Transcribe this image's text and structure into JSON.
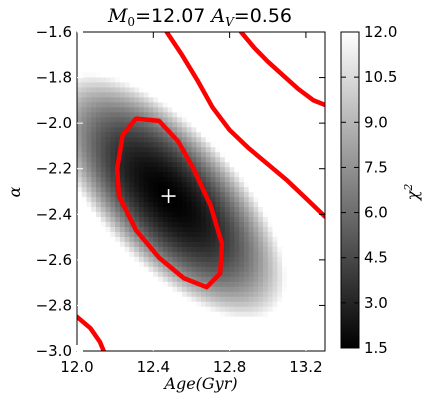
{
  "chart_data": {
    "type": "heatmap",
    "title": {
      "m_sym": "M",
      "m_sub": "0",
      "m_val": "=12.07",
      "a_sym": "A",
      "a_sub": "V",
      "a_val": "=0.56"
    },
    "xlabel": "Age(Gyr)",
    "ylabel": "α",
    "colorbar_label": "χ",
    "colorbar_label_sup": "2",
    "xlim": [
      12.0,
      13.3
    ],
    "ylim": [
      -3.0,
      -1.6
    ],
    "xticks": [
      "12.0",
      "12.4",
      "12.8",
      "13.2"
    ],
    "yticks": [
      "−3.0",
      "−2.8",
      "−2.6",
      "−2.4",
      "−2.2",
      "−2.0",
      "−1.8",
      "−1.6"
    ],
    "colorbar_ticks": [
      "1.5",
      "3.0",
      "4.5",
      "6.0",
      "7.5",
      "9.0",
      "10.5",
      "12.0"
    ],
    "colorbar_range": [
      1.5,
      12.0
    ],
    "colormap": "gray (black = low, white = high)",
    "best_fit": {
      "age": 12.48,
      "alpha": -2.32
    },
    "contour_color": "#ff0000",
    "contours": [
      {
        "name": "closed",
        "points": [
          [
            12.22,
            -2.32
          ],
          [
            12.21,
            -2.2
          ],
          [
            12.24,
            -2.05
          ],
          [
            12.31,
            -1.98
          ],
          [
            12.43,
            -1.99
          ],
          [
            12.53,
            -2.08
          ],
          [
            12.61,
            -2.2
          ],
          [
            12.7,
            -2.36
          ],
          [
            12.76,
            -2.53
          ],
          [
            12.75,
            -2.66
          ],
          [
            12.68,
            -2.72
          ],
          [
            12.56,
            -2.68
          ],
          [
            12.43,
            -2.59
          ],
          [
            12.31,
            -2.47
          ],
          [
            12.22,
            -2.32
          ]
        ]
      },
      {
        "name": "upper-arc",
        "points": [
          [
            12.47,
            -1.6
          ],
          [
            12.55,
            -1.7
          ],
          [
            12.63,
            -1.81
          ],
          [
            12.71,
            -1.93
          ],
          [
            12.8,
            -2.03
          ],
          [
            12.9,
            -2.11
          ],
          [
            13.0,
            -2.18
          ],
          [
            13.1,
            -2.25
          ],
          [
            13.2,
            -2.33
          ],
          [
            13.3,
            -2.41
          ]
        ]
      },
      {
        "name": "top-right-arc",
        "points": [
          [
            12.86,
            -1.6
          ],
          [
            12.93,
            -1.67
          ],
          [
            13.0,
            -1.73
          ],
          [
            13.08,
            -1.79
          ],
          [
            13.16,
            -1.85
          ],
          [
            13.24,
            -1.9
          ],
          [
            13.3,
            -1.92
          ]
        ]
      },
      {
        "name": "bottom-left-arc",
        "points": [
          [
            12.0,
            -2.85
          ],
          [
            12.07,
            -2.9
          ],
          [
            12.12,
            -2.96
          ],
          [
            12.14,
            -3.0
          ]
        ]
      }
    ]
  }
}
